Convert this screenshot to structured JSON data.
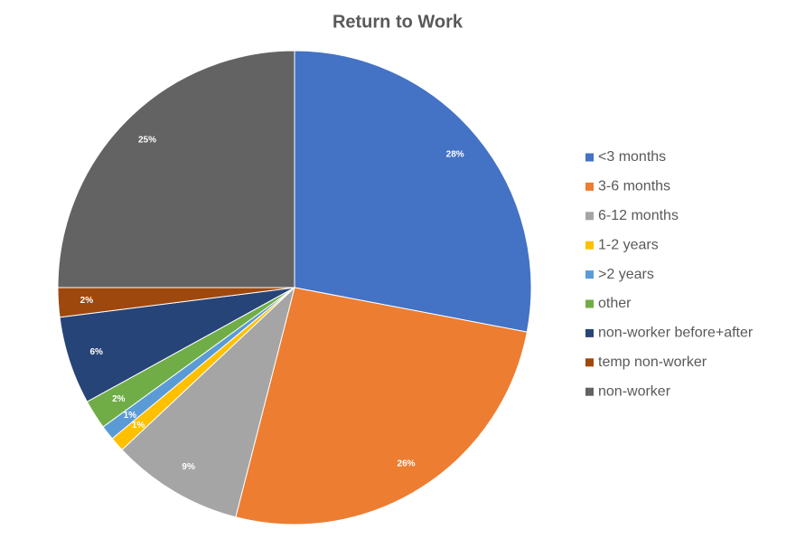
{
  "chart_data": {
    "type": "pie",
    "title": "Return to Work",
    "categories": [
      "<3 months",
      "3-6 months",
      "6-12 months",
      "1-2 years",
      ">2 years",
      "other",
      "non-worker before+after",
      "temp non-worker",
      "non-worker"
    ],
    "values": [
      28,
      26,
      9,
      1,
      1,
      2,
      6,
      2,
      25
    ],
    "value_labels": [
      "28%",
      "26%",
      "9%",
      "1%",
      "1%",
      "2%",
      "6%",
      "2%",
      "25%"
    ],
    "colors": [
      "#4472c4",
      "#ed7d31",
      "#a5a5a5",
      "#ffc000",
      "#5b9bd5",
      "#70ad47",
      "#264478",
      "#9e480e",
      "#636363"
    ],
    "legend": "right"
  }
}
